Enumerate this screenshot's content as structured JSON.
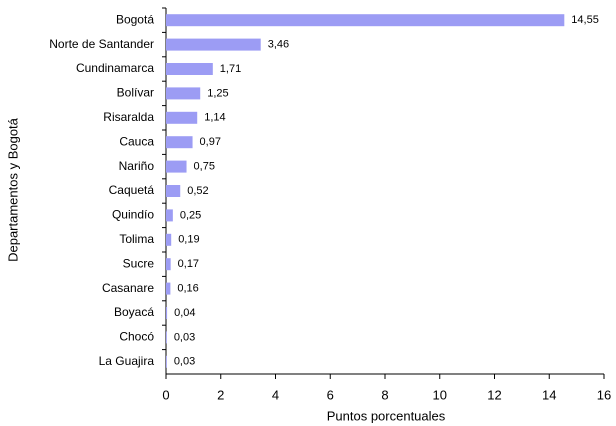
{
  "chart_data": {
    "type": "barh",
    "xlabel": "Puntos porcentuales",
    "ylabel": "Departamentos y Bogotá",
    "categories": [
      "Bogotá",
      "Norte de Santander",
      "Cundinamarca",
      "Bolívar",
      "Risaralda",
      "Cauca",
      "Nariño",
      "Caquetá",
      "Quindío",
      "Tolima",
      "Sucre",
      "Casanare",
      "Boyacá",
      "Chocó",
      "La Guajira"
    ],
    "values": [
      14.55,
      3.46,
      1.71,
      1.25,
      1.14,
      0.97,
      0.75,
      0.52,
      0.25,
      0.19,
      0.17,
      0.16,
      0.04,
      0.03,
      0.03
    ],
    "value_labels": [
      "14,55",
      "3,46",
      "1,71",
      "1,25",
      "1,14",
      "0,97",
      "0,75",
      "0,52",
      "0,25",
      "0,19",
      "0,17",
      "0,16",
      "0,04",
      "0,03",
      "0,03"
    ],
    "color": "#9c9cf4",
    "xlim": [
      0,
      16
    ],
    "xticks": [
      0,
      2,
      4,
      6,
      8,
      10,
      12,
      14,
      16
    ]
  }
}
